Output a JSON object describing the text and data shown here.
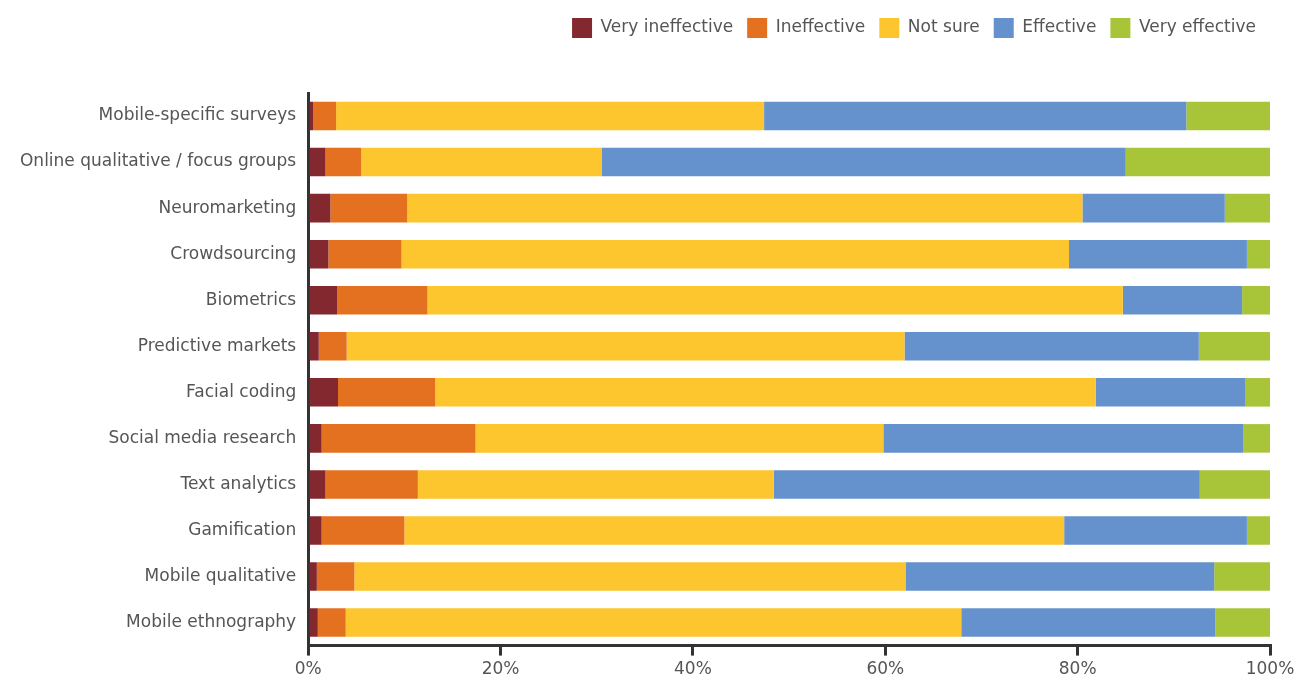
{
  "chart_data": {
    "type": "bar",
    "orientation": "horizontal",
    "stacked": true,
    "categories": [
      "Mobile-specific surveys",
      "Online qualitative / focus groups",
      "Neuromarketing",
      "Crowdsourcing",
      "Biometrics",
      "Predictive markets",
      "Facial coding",
      "Social media research",
      "Text analytics",
      "Gamification",
      "Mobile qualitative",
      "Mobile ethnography"
    ],
    "series": [
      {
        "name": "Very ineffective",
        "color": "#84282f",
        "values": [
          0.5,
          1.8,
          2.3,
          2.1,
          3.0,
          1.1,
          3.1,
          1.4,
          1.8,
          1.4,
          0.9,
          1.0
        ]
      },
      {
        "name": "Ineffective",
        "color": "#e3711f",
        "values": [
          2.4,
          3.7,
          8.0,
          7.6,
          9.4,
          2.9,
          10.1,
          16.0,
          9.6,
          8.6,
          3.9,
          2.9
        ]
      },
      {
        "name": "Not sure",
        "color": "#fdc52e",
        "values": [
          44.5,
          25.0,
          70.2,
          69.4,
          72.3,
          58.0,
          68.7,
          42.4,
          37.0,
          68.6,
          57.3,
          64.0
        ]
      },
      {
        "name": "Effective",
        "color": "#6592cc",
        "values": [
          43.9,
          54.5,
          14.8,
          18.5,
          12.4,
          30.6,
          15.5,
          37.4,
          44.3,
          19.0,
          32.1,
          26.4
        ]
      },
      {
        "name": "Very effective",
        "color": "#a8c539",
        "values": [
          8.7,
          15.0,
          4.7,
          2.4,
          2.9,
          7.4,
          2.6,
          2.8,
          7.3,
          2.4,
          5.9,
          5.7
        ]
      }
    ],
    "xlim": [
      0,
      100
    ],
    "xticks": [
      {
        "value": 0,
        "label": "0%"
      },
      {
        "value": 20,
        "label": "20%"
      },
      {
        "value": 40,
        "label": "40%"
      },
      {
        "value": 60,
        "label": "60%"
      },
      {
        "value": 80,
        "label": "80%"
      },
      {
        "value": 100,
        "label": "100%"
      }
    ],
    "grid": false,
    "legend": "top right"
  }
}
